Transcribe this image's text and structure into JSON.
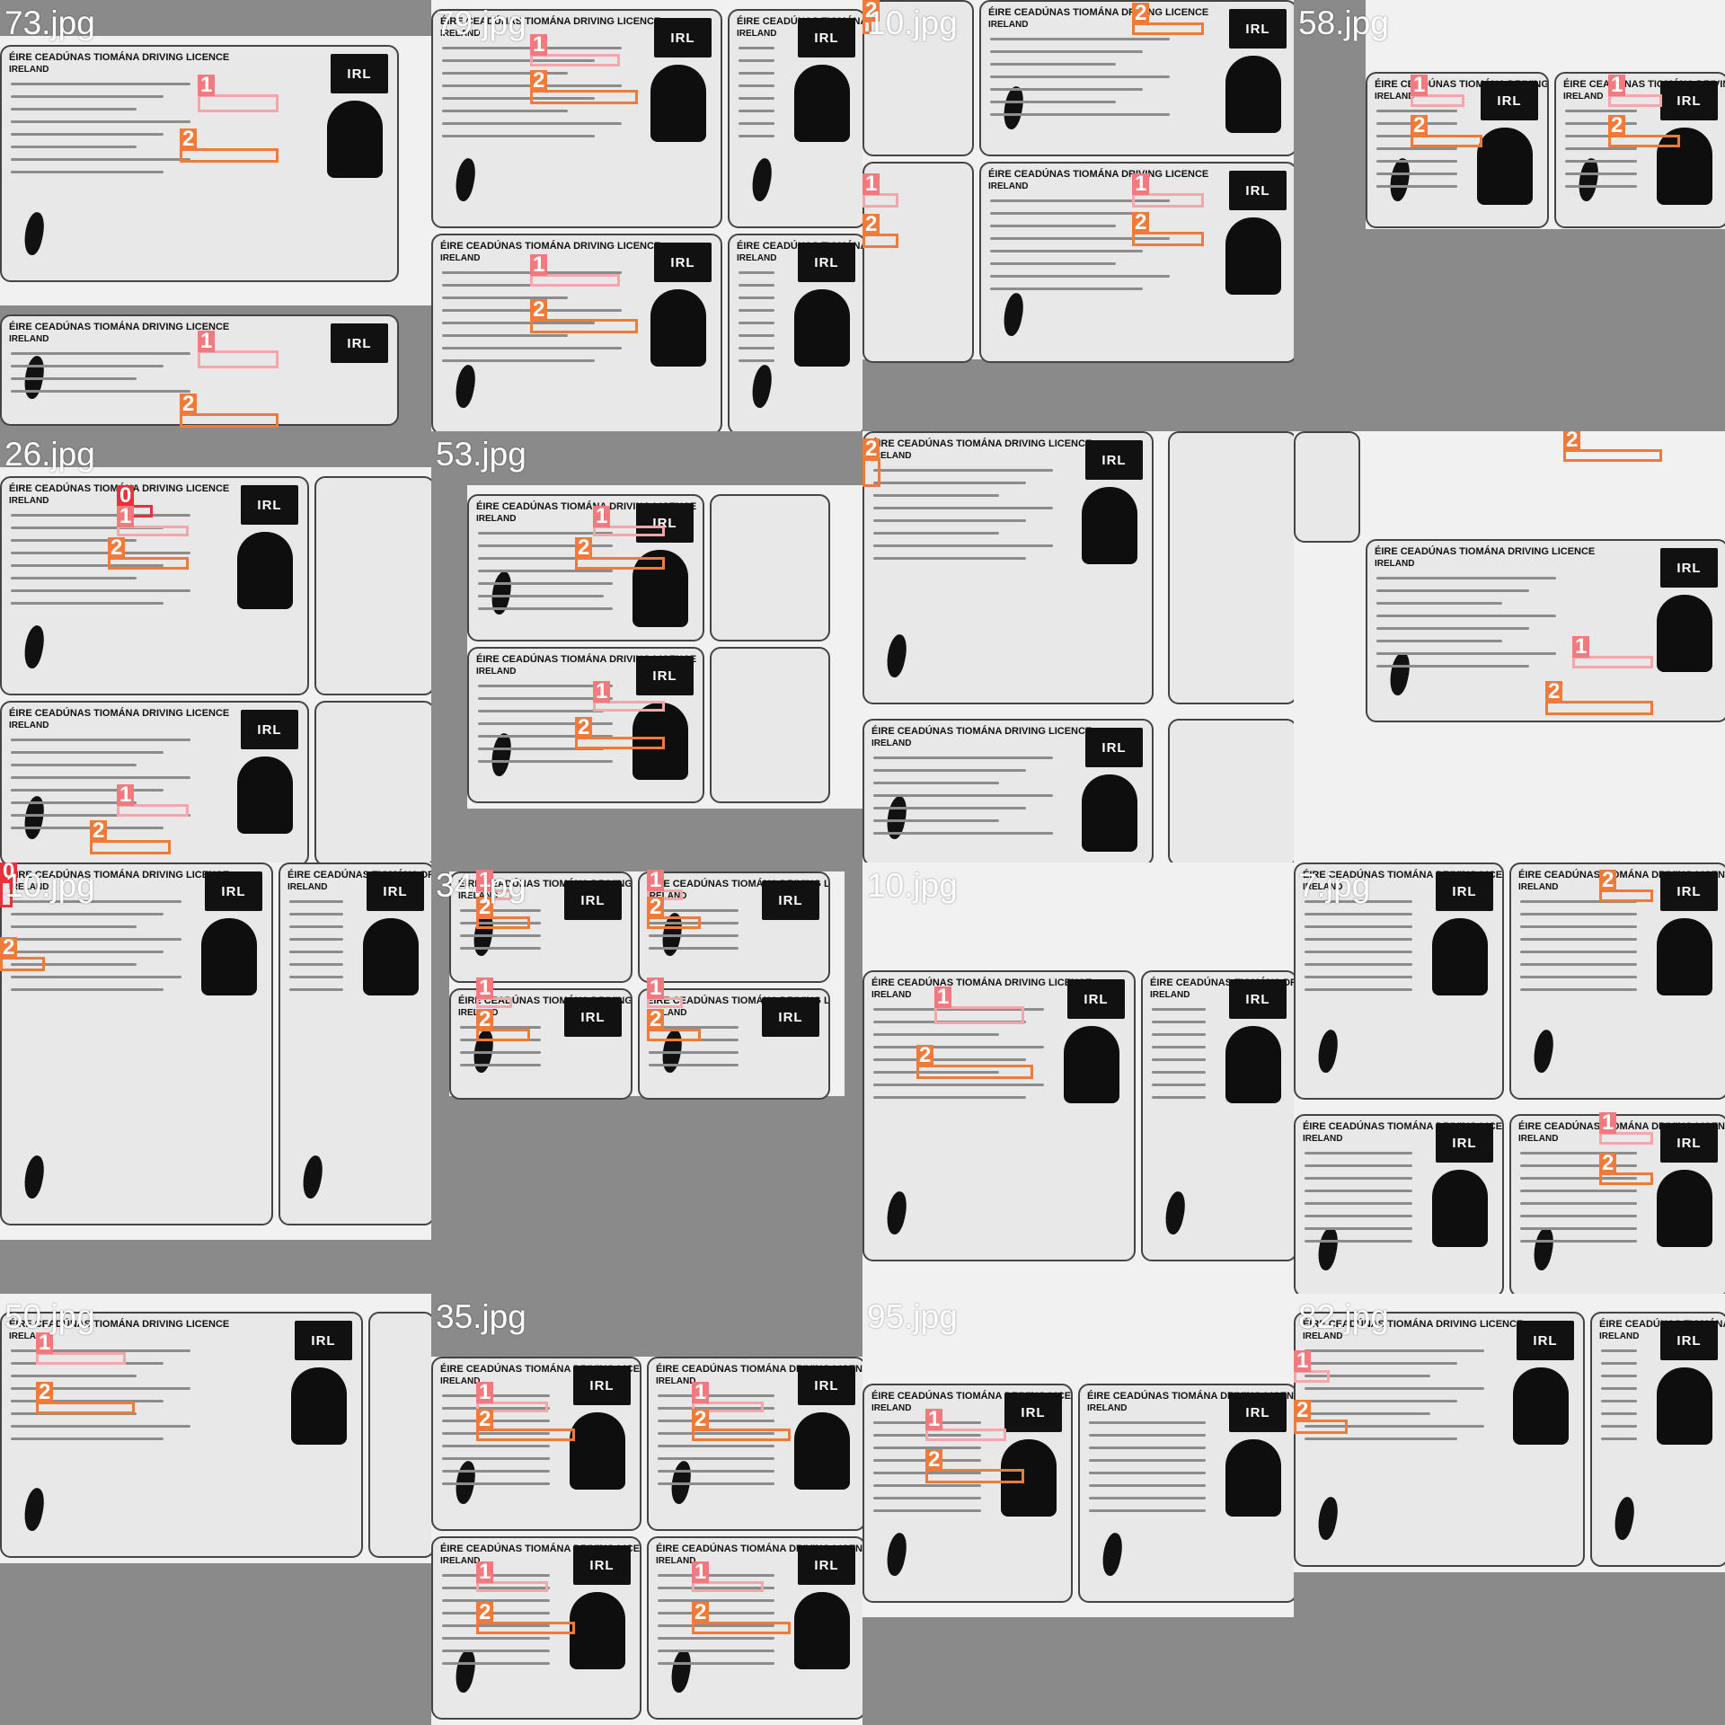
{
  "header_text": "ÉIRE  CEADÚNAS TIOMÁNA  DRIVING LICENCE",
  "header_sub": "IRELAND",
  "flag_text": "IRL",
  "tiles": [
    {
      "title": "73.jpg"
    },
    {
      "title": "79.jpg"
    },
    {
      "title": "10.jpg"
    },
    {
      "title": "58.jpg"
    },
    {
      "title": "26.jpg"
    },
    {
      "title": "53.jpg"
    },
    {
      "title": ""
    },
    {
      "title": ""
    },
    {
      "title": "10.jpg"
    },
    {
      "title": "34.jpg"
    },
    {
      "title": "10.jpg"
    },
    {
      "title": "7.jpg"
    },
    {
      "title": "50.jpg"
    },
    {
      "title": "35.jpg"
    },
    {
      "title": "95.jpg"
    },
    {
      "title": "82.jpg"
    }
  ],
  "labels": {
    "c0": "0",
    "c1": "1",
    "c2": "2"
  },
  "colors": {
    "c0": "#e8323a",
    "c1": "#f4a6aa",
    "c2": "#f07a3a",
    "panel_bg": "#8a8a8a",
    "scan_bg": "#f1f1f1"
  }
}
